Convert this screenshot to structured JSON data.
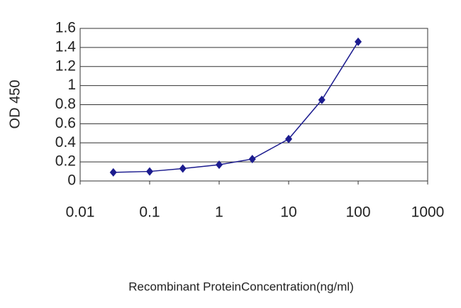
{
  "chart_data": {
    "type": "line",
    "x_label": "Recombinant ProteinConcentration(ng/ml)",
    "y_label": "OD 450",
    "x": [
      0.03,
      0.1,
      0.3,
      1,
      3,
      10,
      30,
      100
    ],
    "series": [
      {
        "color": "#1c1c8f",
        "values": [
          0.09,
          0.1,
          0.13,
          0.17,
          0.23,
          0.44,
          0.85,
          1.46
        ]
      }
    ],
    "xscale": "log",
    "xlim": [
      0.01,
      1000
    ],
    "xticks": [
      0.01,
      0.1,
      1,
      10,
      100,
      1000
    ],
    "ylim": [
      0,
      1.6
    ],
    "yticks": [
      0,
      0.2,
      0.4,
      0.6,
      0.8,
      1,
      1.2,
      1.4,
      1.6
    ],
    "grid": true
  }
}
